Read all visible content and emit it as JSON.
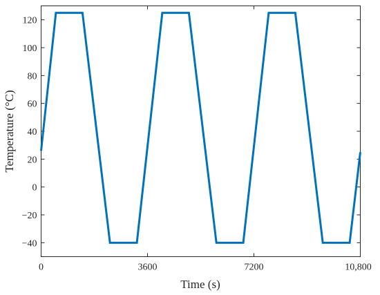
{
  "chart_data": {
    "type": "line",
    "title": "",
    "xlabel": "Time (s)",
    "ylabel": "Temperature (°C)",
    "xlim": [
      0,
      10800
    ],
    "ylim": [
      -50,
      130
    ],
    "grid": false,
    "x_ticks": [
      {
        "value": 0,
        "label": "0"
      },
      {
        "value": 3600,
        "label": "3600"
      },
      {
        "value": 7200,
        "label": "7200"
      },
      {
        "value": 10800,
        "label": "10,800"
      }
    ],
    "y_ticks": [
      {
        "value": -40,
        "label": "−40"
      },
      {
        "value": -20,
        "label": "−20"
      },
      {
        "value": 0,
        "label": "0"
      },
      {
        "value": 20,
        "label": "20"
      },
      {
        "value": 40,
        "label": "40"
      },
      {
        "value": 60,
        "label": "60"
      },
      {
        "value": 80,
        "label": "80"
      },
      {
        "value": 100,
        "label": "100"
      },
      {
        "value": 120,
        "label": "120"
      }
    ],
    "series": [
      {
        "color": "#0072bd",
        "x": [
          0,
          500,
          1400,
          2330,
          3240,
          4100,
          5000,
          5930,
          6840,
          7700,
          8600,
          9530,
          10440,
          10800
        ],
        "y": [
          26,
          125,
          125,
          -40,
          -40,
          125,
          125,
          -40,
          -40,
          125,
          125,
          -40,
          -40,
          25
        ]
      }
    ]
  }
}
